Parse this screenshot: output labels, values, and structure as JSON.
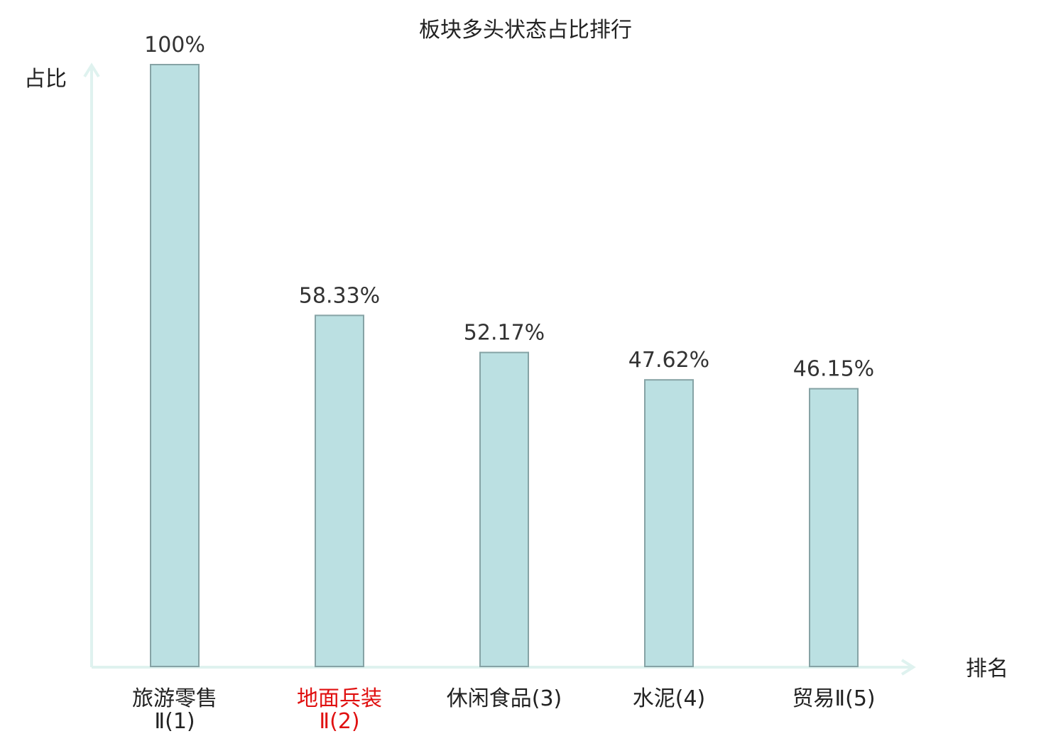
{
  "chart_data": {
    "type": "bar",
    "title": "板块多头状态占比排行",
    "ylabel": "占比",
    "xlabel": "排名",
    "ylim": [
      0,
      100
    ],
    "grid": false,
    "categories": [
      {
        "line1": "旅游零售",
        "line2": "Ⅱ(1)",
        "highlight": false
      },
      {
        "line1": "地面兵装",
        "line2": "Ⅱ(2)",
        "highlight": true
      },
      {
        "line1": "休闲食品(3)",
        "line2": "",
        "highlight": false
      },
      {
        "line1": "水泥(4)",
        "line2": "",
        "highlight": false
      },
      {
        "line1": "贸易Ⅱ(5)",
        "line2": "",
        "highlight": false
      }
    ],
    "values": [
      100,
      58.33,
      52.17,
      47.62,
      46.15
    ],
    "value_labels": [
      "100%",
      "58.33%",
      "52.17%",
      "47.62%",
      "46.15%"
    ]
  },
  "colors": {
    "bar_fill": "#bbe0e2",
    "bar_stroke": "#86a3a5",
    "axis": "#dff2ef",
    "text": "#222222",
    "value_text": "#333333",
    "highlight": "#e01010"
  }
}
